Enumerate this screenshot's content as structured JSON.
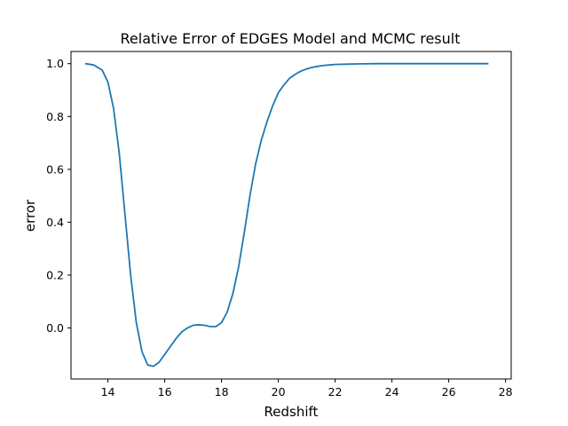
{
  "chart_data": {
    "type": "line",
    "title": "Relative Error of EDGES Model and MCMC result",
    "xlabel": "Redshift",
    "ylabel": "error",
    "xlim": [
      12.7,
      28.2
    ],
    "ylim": [
      -0.193,
      1.046
    ],
    "xticks": [
      14,
      16,
      18,
      20,
      22,
      24,
      26,
      28
    ],
    "yticks": [
      0.0,
      0.2,
      0.4,
      0.6,
      0.8,
      1.0
    ],
    "ytick_labels": [
      "0.0",
      "0.2",
      "0.4",
      "0.6",
      "0.8",
      "1.0"
    ],
    "grid": false,
    "series": [
      {
        "color": "#1f77b4",
        "x": [
          13.2,
          13.5,
          13.8,
          14.0,
          14.2,
          14.4,
          14.6,
          14.8,
          15.0,
          15.2,
          15.4,
          15.6,
          15.8,
          16.0,
          16.2,
          16.4,
          16.6,
          16.8,
          17.0,
          17.2,
          17.4,
          17.6,
          17.8,
          18.0,
          18.2,
          18.4,
          18.6,
          18.8,
          19.0,
          19.2,
          19.4,
          19.6,
          19.8,
          20.0,
          20.2,
          20.4,
          20.6,
          20.8,
          21.0,
          21.2,
          21.4,
          21.6,
          21.8,
          22.0,
          22.4,
          22.8,
          23.5,
          24.5,
          26.0,
          27.4
        ],
        "y": [
          1.0,
          0.995,
          0.975,
          0.93,
          0.83,
          0.66,
          0.43,
          0.2,
          0.02,
          -0.09,
          -0.14,
          -0.145,
          -0.13,
          -0.1,
          -0.07,
          -0.04,
          -0.015,
          0.0,
          0.01,
          0.012,
          0.01,
          0.005,
          0.005,
          0.02,
          0.06,
          0.13,
          0.23,
          0.36,
          0.5,
          0.62,
          0.71,
          0.78,
          0.84,
          0.89,
          0.92,
          0.945,
          0.96,
          0.972,
          0.98,
          0.986,
          0.99,
          0.993,
          0.995,
          0.997,
          0.998,
          0.999,
          1.0,
          1.0,
          1.0,
          1.0
        ]
      }
    ]
  }
}
